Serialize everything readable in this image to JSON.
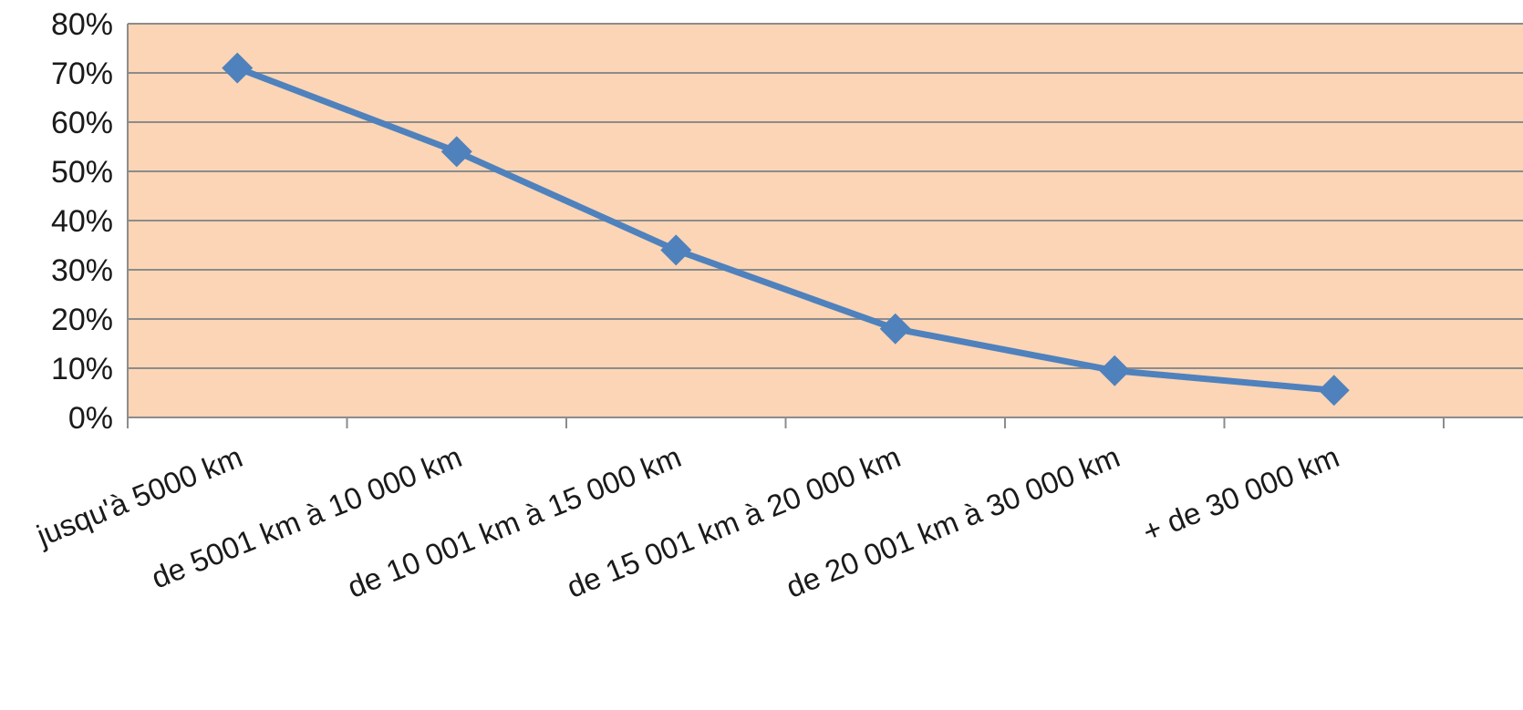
{
  "chart_data": {
    "type": "line",
    "categories": [
      "jusqu'à 5000 km",
      "de 5001 km à 10 000 km",
      "de 10 001 km à 15 000 km",
      "de 15 001 km à 20 000 km",
      "de 20 001 km à 30 000 km",
      "+ de 30 000 km"
    ],
    "series": [
      {
        "values": [
          0.71,
          0.54,
          0.34,
          0.18,
          0.095,
          0.055
        ]
      }
    ],
    "yticks": [
      "0%",
      "10%",
      "20%",
      "30%",
      "40%",
      "50%",
      "60%",
      "70%",
      "80%"
    ],
    "ylim": [
      0,
      0.8
    ],
    "grid": true,
    "legend": "none",
    "marker": "diamond",
    "colors": {
      "plot_background": "#fbd5b5",
      "line": "#4f81bd",
      "grid": "#8c8c8c"
    }
  }
}
